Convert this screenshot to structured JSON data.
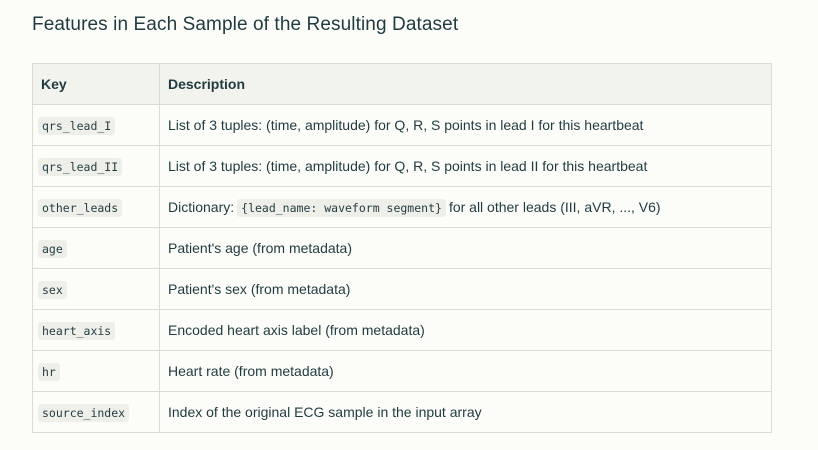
{
  "title": "Features in Each Sample of the Resulting Dataset",
  "table": {
    "headers": {
      "key": "Key",
      "description": "Description"
    },
    "rows": [
      {
        "key": "qrs_lead_I",
        "description": "List of 3 tuples: (time, amplitude) for Q, R, S points in lead I for this heartbeat"
      },
      {
        "key": "qrs_lead_II",
        "description": "List of 3 tuples: (time, amplitude) for Q, R, S points in lead II for this heartbeat"
      },
      {
        "key": "other_leads",
        "description_prefix": "Dictionary:",
        "description_code": "{lead_name: waveform segment}",
        "description_suffix": "for all other leads (III, aVR, ..., V6)"
      },
      {
        "key": "age",
        "description": "Patient's age (from metadata)"
      },
      {
        "key": "sex",
        "description": "Patient's sex (from metadata)"
      },
      {
        "key": "heart_axis",
        "description": "Encoded heart axis label (from metadata)"
      },
      {
        "key": "hr",
        "description": "Heart rate (from metadata)"
      },
      {
        "key": "source_index",
        "description": "Index of the original ECG sample in the input array"
      }
    ]
  }
}
